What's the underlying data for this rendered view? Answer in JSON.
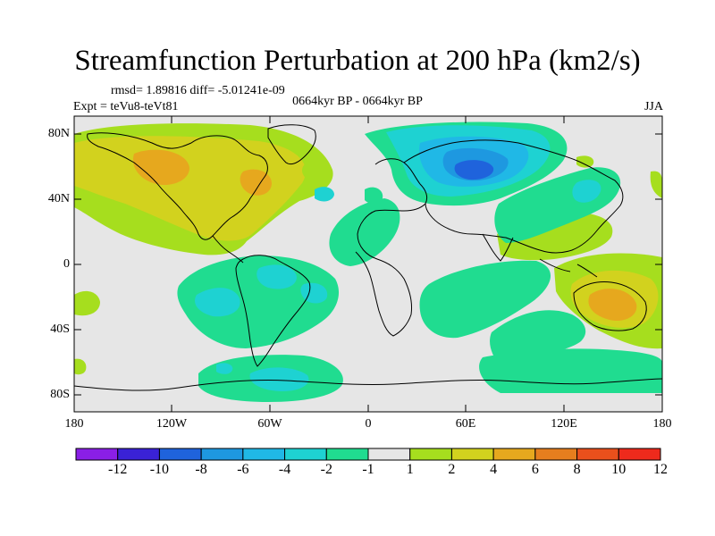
{
  "title": "Streamfunction Perturbation at 200 hPa (km2/s)",
  "stats_line": "rmsd= 1.89816 diff= -5.01241e-09",
  "experiment": "Expt = teVu8-teVt81",
  "period": "0664kyr BP - 0664kyr BP",
  "season": "JJA",
  "lat_labels": [
    "80N",
    "40N",
    "0",
    "40S",
    "80S"
  ],
  "lon_labels": [
    "180",
    "120W",
    "60W",
    "0",
    "60E",
    "120E",
    "180"
  ],
  "colorbar": {
    "levels": [
      "-12",
      "-10",
      "-8",
      "-6",
      "-4",
      "-2",
      "-1",
      "1",
      "2",
      "4",
      "6",
      "8",
      "10",
      "12"
    ],
    "colors": [
      "#8a1fe6",
      "#3a22d6",
      "#1f63dc",
      "#1e98e0",
      "#20b8e6",
      "#1ed2d2",
      "#20dc90",
      "#e6e6e6",
      "#a6de1e",
      "#d2d21e",
      "#e6a81e",
      "#e67e1e",
      "#ea501c",
      "#ee2a1c"
    ]
  },
  "fields": [
    {
      "name": "north-america-high",
      "sign": "positive",
      "level": "4"
    },
    {
      "name": "eurasia-low",
      "sign": "negative",
      "level": "-6"
    },
    {
      "name": "australia-high",
      "sign": "positive",
      "level": "6"
    },
    {
      "name": "south-america-low",
      "sign": "negative",
      "level": "-2"
    },
    {
      "name": "antarctic-low",
      "sign": "negative",
      "level": "-2"
    }
  ]
}
